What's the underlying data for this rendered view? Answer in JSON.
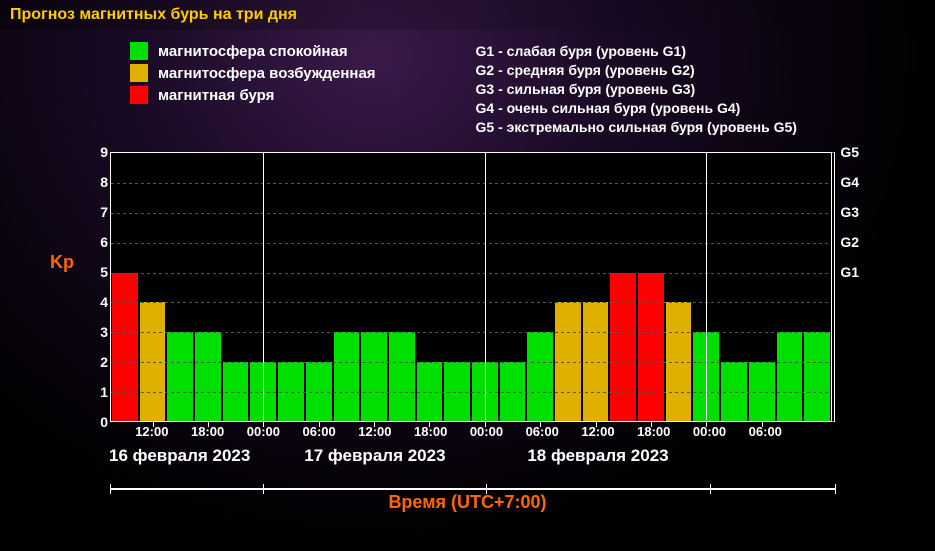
{
  "title": "Прогноз магнитных бурь на три дня",
  "title_color": "#ffcc00",
  "left_legend": [
    {
      "color": "#00e000",
      "label": "магнитосфера спокойная"
    },
    {
      "color": "#e0b000",
      "label": "магнитосфера возбужденная"
    },
    {
      "color": "#ff0000",
      "label": "магнитная буря"
    }
  ],
  "right_legend": [
    "G1 - слабая буря (уровень G1)",
    "G2 - средняя буря (уровень G2)",
    "G3 - сильная буря (уровень G3)",
    "G4 - очень сильная буря (уровень G4)",
    "G5 - экстремально сильная буря (уровень G5)"
  ],
  "chart": {
    "type": "bar",
    "ylabel_left": "Kp",
    "ylim": [
      0,
      9
    ],
    "yticks_left": [
      0,
      1,
      2,
      3,
      4,
      5,
      6,
      7,
      8,
      9
    ],
    "yticks_right": [
      {
        "value": 5,
        "label": "G1"
      },
      {
        "value": 6,
        "label": "G2"
      },
      {
        "value": 7,
        "label": "G3"
      },
      {
        "value": 8,
        "label": "G4"
      },
      {
        "value": 9,
        "label": "G5"
      }
    ],
    "colors": {
      "calm": "#00e000",
      "excited": "#e0b000",
      "storm": "#ff0000"
    },
    "background_color": "#000000",
    "grid_color": "#555555",
    "axis_color": "#ffffff",
    "bars": [
      {
        "value": 5,
        "level": "storm"
      },
      {
        "value": 4,
        "level": "excited"
      },
      {
        "value": 3,
        "level": "calm"
      },
      {
        "value": 3,
        "level": "calm"
      },
      {
        "value": 2,
        "level": "calm"
      },
      {
        "value": 2,
        "level": "calm"
      },
      {
        "value": 2,
        "level": "calm"
      },
      {
        "value": 2,
        "level": "calm"
      },
      {
        "value": 3,
        "level": "calm"
      },
      {
        "value": 3,
        "level": "calm"
      },
      {
        "value": 3,
        "level": "calm"
      },
      {
        "value": 2,
        "level": "calm"
      },
      {
        "value": 2,
        "level": "calm"
      },
      {
        "value": 2,
        "level": "calm"
      },
      {
        "value": 2,
        "level": "calm"
      },
      {
        "value": 3,
        "level": "calm"
      },
      {
        "value": 4,
        "level": "excited"
      },
      {
        "value": 4,
        "level": "excited"
      },
      {
        "value": 5,
        "level": "storm"
      },
      {
        "value": 5,
        "level": "storm"
      },
      {
        "value": 4,
        "level": "excited"
      },
      {
        "value": 3,
        "level": "calm"
      },
      {
        "value": 2,
        "level": "calm"
      },
      {
        "value": 2,
        "level": "calm"
      },
      {
        "value": 3,
        "level": "calm"
      },
      {
        "value": 3,
        "level": "calm"
      }
    ],
    "n_bars": 26,
    "xticks": [
      {
        "index": 1.5,
        "label": "12:00"
      },
      {
        "index": 3.5,
        "label": "18:00"
      },
      {
        "index": 5.5,
        "label": "00:00"
      },
      {
        "index": 7.5,
        "label": "06:00"
      },
      {
        "index": 9.5,
        "label": "12:00"
      },
      {
        "index": 11.5,
        "label": "18:00"
      },
      {
        "index": 13.5,
        "label": "00:00"
      },
      {
        "index": 15.5,
        "label": "06:00"
      },
      {
        "index": 17.5,
        "label": "12:00"
      },
      {
        "index": 19.5,
        "label": "18:00"
      },
      {
        "index": 21.5,
        "label": "00:00"
      },
      {
        "index": 23.5,
        "label": "06:00"
      }
    ],
    "day_separators": [
      5.5,
      13.5,
      21.5
    ],
    "dates": [
      {
        "center_index": 2.5,
        "label": "16 февраля 2023"
      },
      {
        "center_index": 9.5,
        "label": "17 февраля 2023"
      },
      {
        "center_index": 17.5,
        "label": "18 февраля 2023"
      }
    ],
    "date_rule_ticks": [
      0,
      5.5,
      13.5,
      21.5,
      26
    ],
    "xaxis_title": "Время (UTC+7:00)"
  }
}
